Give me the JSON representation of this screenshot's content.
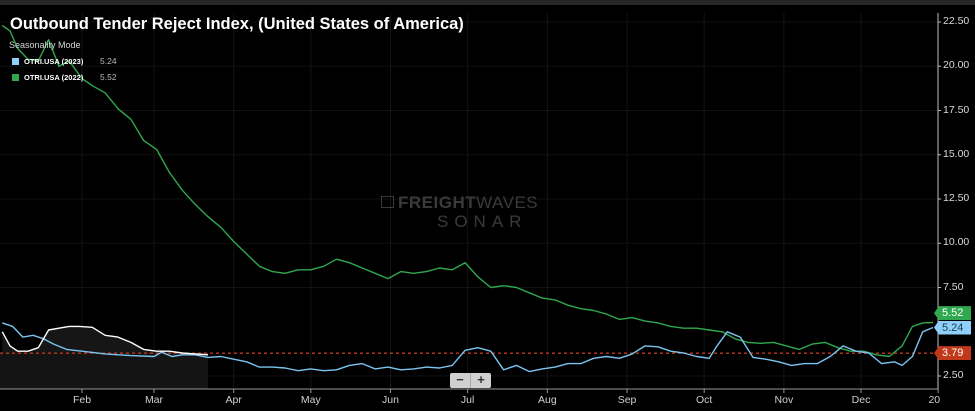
{
  "chart_data": {
    "type": "line",
    "title": "Outbound Tender Reject Index, (United States of America)",
    "subtitle": "Seasonality Mode",
    "xlabel": "",
    "ylabel": "",
    "x_unit": "day of year",
    "xlim": [
      0,
      364
    ],
    "ylim": [
      1.5,
      23.0
    ],
    "x_ticks": [
      {
        "label": "Feb",
        "day": 31
      },
      {
        "label": "Mar",
        "day": 59
      },
      {
        "label": "Apr",
        "day": 90
      },
      {
        "label": "May",
        "day": 120
      },
      {
        "label": "Jun",
        "day": 151
      },
      {
        "label": "Jul",
        "day": 181
      },
      {
        "label": "Aug",
        "day": 212
      },
      {
        "label": "Sep",
        "day": 243
      },
      {
        "label": "Oct",
        "day": 273
      },
      {
        "label": "Nov",
        "day": 304
      },
      {
        "label": "Dec",
        "day": 334
      },
      {
        "label": "20",
        "day": 364
      }
    ],
    "y_ticks": [
      "22.50",
      "20.00",
      "17.50",
      "15.00",
      "12.50",
      "10.00",
      "7.50",
      "2.50"
    ],
    "y_tick_values": [
      22.5,
      20.0,
      17.5,
      15.0,
      12.5,
      10.0,
      7.5,
      2.5
    ],
    "grid": true,
    "legend_position": "top-left",
    "reference_line": {
      "value": 3.79,
      "label": "3.79",
      "color": "#c0391b"
    },
    "series": [
      {
        "name": "OTRI.USA (2023)",
        "last_value": "5.24",
        "color": "#7cc4f0",
        "x": [
          0,
          4,
          8,
          12,
          16,
          20,
          25,
          31,
          40,
          50,
          59,
          62,
          66,
          70,
          75,
          80,
          85,
          90,
          95,
          100,
          105,
          110,
          115,
          120,
          125,
          130,
          135,
          140,
          145,
          150,
          155,
          160,
          165,
          170,
          175,
          180,
          185,
          190,
          195,
          200,
          205,
          210,
          215,
          220,
          225,
          230,
          235,
          240,
          245,
          250,
          255,
          260,
          265,
          270,
          275,
          278,
          282,
          287,
          292,
          297,
          302,
          307,
          312,
          317,
          322,
          327,
          332,
          337,
          342,
          347,
          350,
          354,
          358,
          362
        ],
        "y": [
          5.5,
          5.3,
          4.7,
          4.8,
          4.6,
          4.3,
          4.0,
          3.9,
          3.75,
          3.65,
          3.6,
          3.85,
          3.6,
          3.7,
          3.7,
          3.55,
          3.6,
          3.45,
          3.3,
          3.0,
          3.0,
          2.95,
          2.8,
          2.9,
          2.8,
          2.85,
          3.1,
          3.2,
          2.9,
          3.0,
          2.85,
          2.9,
          3.0,
          2.95,
          3.1,
          3.95,
          4.1,
          3.9,
          2.85,
          3.1,
          2.75,
          2.9,
          3.0,
          3.2,
          3.2,
          3.5,
          3.6,
          3.5,
          3.75,
          4.2,
          4.15,
          3.9,
          3.8,
          3.6,
          3.5,
          4.2,
          5.0,
          4.7,
          3.55,
          3.45,
          3.3,
          3.1,
          3.2,
          3.2,
          3.6,
          4.2,
          3.9,
          3.8,
          3.2,
          3.3,
          3.1,
          3.6,
          5.0,
          5.24
        ]
      },
      {
        "name": "OTRI.USA (2022)",
        "last_value": "5.52",
        "color": "#2fa84f",
        "x": [
          0,
          3,
          6,
          10,
          14,
          18,
          22,
          26,
          31,
          35,
          40,
          45,
          50,
          55,
          60,
          65,
          70,
          75,
          80,
          85,
          90,
          95,
          100,
          105,
          110,
          115,
          120,
          125,
          130,
          135,
          140,
          145,
          150,
          155,
          160,
          165,
          170,
          175,
          180,
          185,
          190,
          195,
          200,
          205,
          210,
          215,
          220,
          225,
          230,
          235,
          240,
          245,
          250,
          255,
          260,
          265,
          270,
          275,
          280,
          285,
          290,
          295,
          300,
          305,
          310,
          315,
          320,
          325,
          330,
          335,
          340,
          345,
          350,
          354,
          358,
          362
        ],
        "y": [
          22.3,
          22.0,
          21.0,
          20.4,
          20.3,
          21.5,
          20.0,
          20.3,
          19.3,
          18.9,
          18.5,
          17.6,
          17.0,
          15.8,
          15.3,
          14.0,
          13.0,
          12.2,
          11.5,
          10.9,
          10.1,
          9.4,
          8.7,
          8.4,
          8.3,
          8.5,
          8.5,
          8.7,
          9.1,
          8.9,
          8.6,
          8.3,
          8.0,
          8.4,
          8.3,
          8.4,
          8.6,
          8.5,
          8.9,
          8.1,
          7.5,
          7.6,
          7.5,
          7.2,
          6.9,
          6.8,
          6.5,
          6.3,
          6.2,
          6.0,
          5.7,
          5.8,
          5.6,
          5.5,
          5.3,
          5.2,
          5.2,
          5.1,
          5.0,
          4.6,
          4.4,
          4.35,
          4.4,
          4.2,
          4.0,
          4.3,
          4.4,
          4.1,
          3.9,
          3.9,
          3.7,
          3.6,
          4.2,
          5.3,
          5.5,
          5.52
        ]
      },
      {
        "name": "navigator",
        "color": "#ffffff",
        "x": [
          0,
          3,
          6,
          10,
          14,
          18,
          22,
          26,
          30,
          35,
          40,
          45,
          50,
          55,
          60,
          65,
          70,
          75,
          80
        ],
        "y": [
          5.0,
          4.2,
          3.9,
          3.9,
          4.1,
          5.1,
          5.2,
          5.3,
          5.3,
          5.25,
          4.8,
          4.7,
          4.4,
          4.0,
          3.9,
          3.9,
          3.8,
          3.75,
          3.7
        ]
      }
    ]
  },
  "watermark": {
    "brand_bold": "FREIGHT",
    "brand_light": "WAVES",
    "product": "SONAR"
  },
  "zoom_controls": {
    "minus": "−",
    "plus": "+"
  }
}
